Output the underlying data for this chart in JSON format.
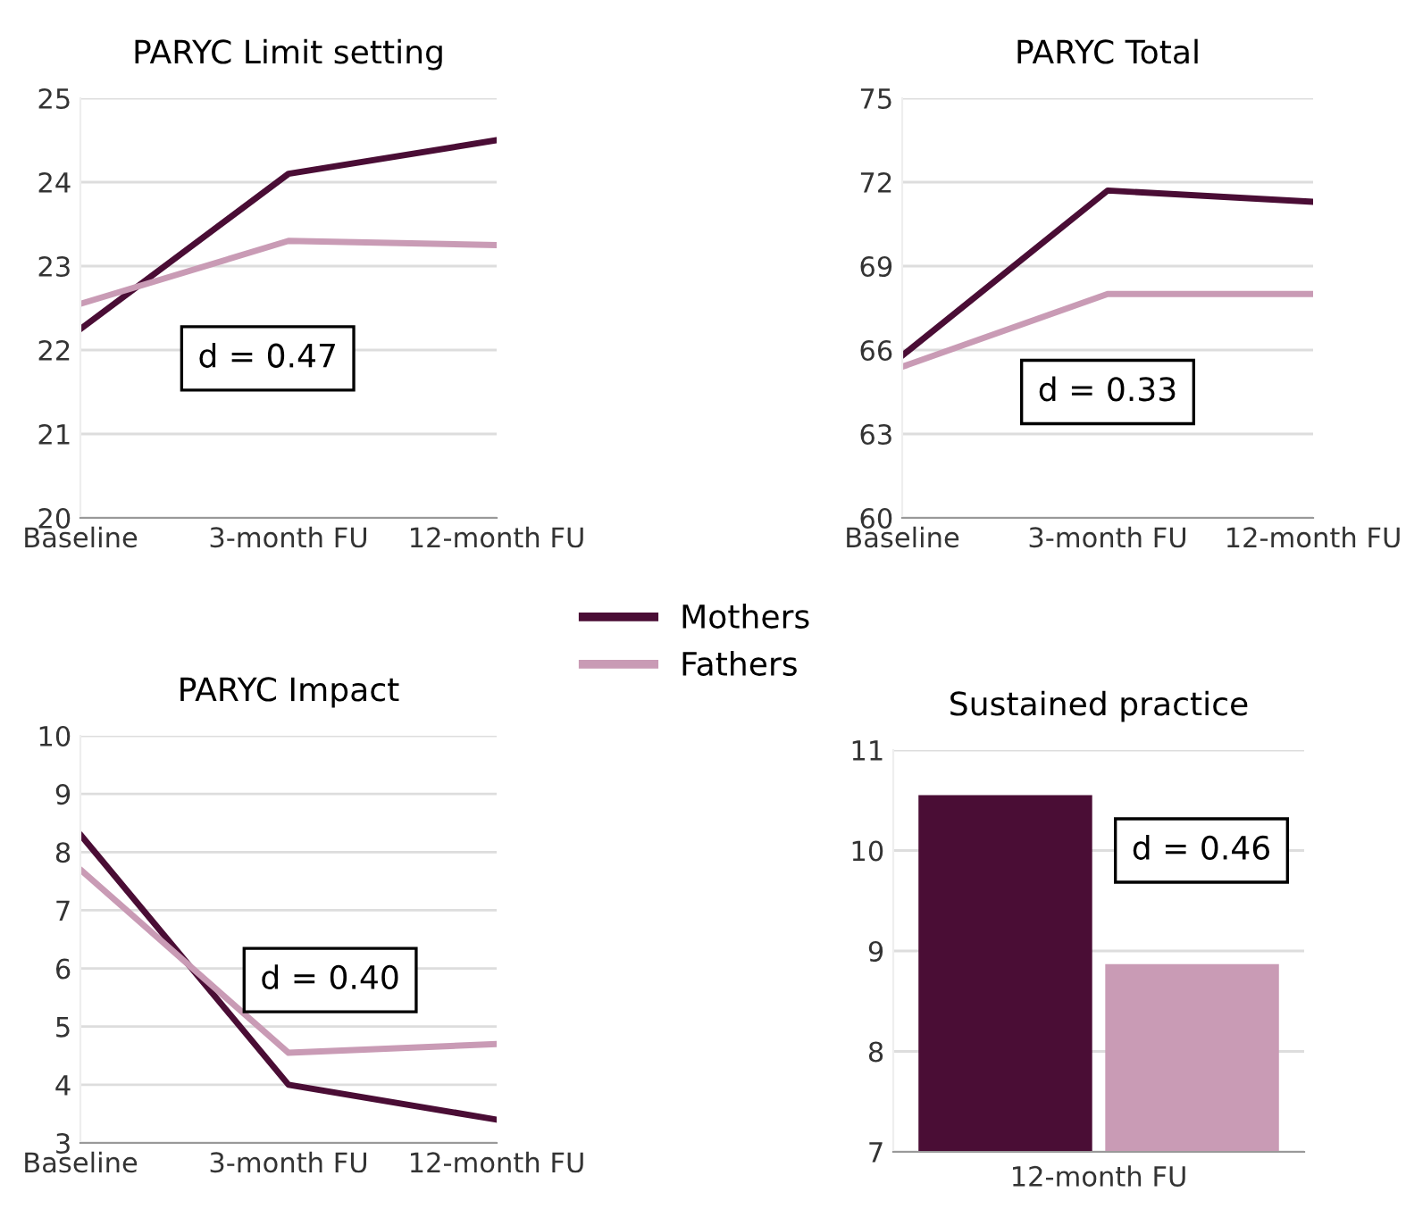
{
  "chart_data": [
    {
      "type": "line",
      "title": "PARYC Limit setting",
      "categories": [
        "Baseline",
        "3-month FU",
        "12-month FU"
      ],
      "ylim": [
        20,
        25
      ],
      "yticks": [
        20,
        21,
        22,
        23,
        24,
        25
      ],
      "grid": "y",
      "annotations": [
        "d = 0.47"
      ],
      "legend": "bottom right",
      "series": [
        {
          "name": "Mothers",
          "color": "#4a0d35",
          "values": [
            22.25,
            24.1,
            24.5
          ]
        },
        {
          "name": "Fathers",
          "color": "#c99bb5",
          "values": [
            22.55,
            23.3,
            23.25
          ]
        }
      ]
    },
    {
      "type": "line",
      "title": "PARYC Total",
      "categories": [
        "Baseline",
        "3-month FU",
        "12-month FU"
      ],
      "ylim": [
        60,
        75
      ],
      "yticks": [
        60,
        63,
        66,
        69,
        72,
        75
      ],
      "grid": "y",
      "annotations": [
        "d = 0.33"
      ],
      "series": [
        {
          "color": "#4a0d35",
          "values": [
            65.8,
            71.7,
            71.3
          ]
        },
        {
          "color": "#c99bb5",
          "values": [
            65.4,
            68.0,
            68.0
          ]
        }
      ]
    },
    {
      "type": "line",
      "title": "PARYC Impact",
      "categories": [
        "Baseline",
        "3-month FU",
        "12-month FU"
      ],
      "ylim": [
        3,
        10
      ],
      "yticks": [
        3,
        4,
        5,
        6,
        7,
        8,
        9,
        10
      ],
      "grid": "y",
      "annotations": [
        "d = 0.40"
      ],
      "series": [
        {
          "color": "#4a0d35",
          "values": [
            8.3,
            4.0,
            3.4
          ]
        },
        {
          "color": "#c99bb5",
          "values": [
            7.7,
            4.55,
            4.7
          ]
        }
      ]
    },
    {
      "type": "bar",
      "title": "Sustained practice",
      "categories": [
        null,
        null
      ],
      "xlabel": "12-month FU",
      "ylim": [
        7,
        11
      ],
      "yticks": [
        7,
        8,
        9,
        10,
        11
      ],
      "grid": "y",
      "annotations": [
        "d = 0.46"
      ],
      "values": [
        10.55,
        8.87
      ],
      "colors": [
        "#4a0d35",
        "#c99bb5"
      ]
    }
  ]
}
